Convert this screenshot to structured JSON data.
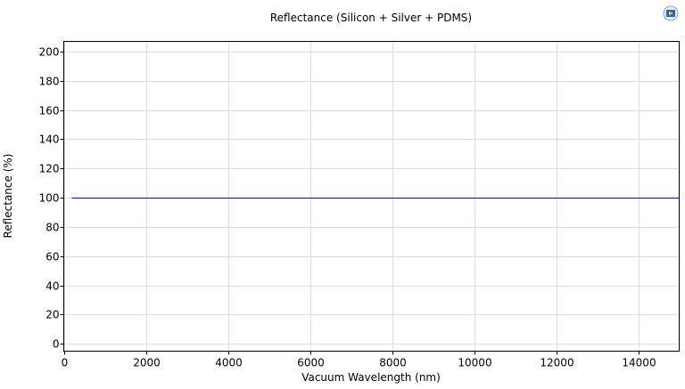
{
  "chart_data": {
    "type": "line",
    "title": "Reflectance (Silicon + Silver + PDMS)",
    "xlabel": "Vacuum Wavelength (nm)",
    "ylabel": "Reflectance (%)",
    "xlim": [
      0,
      15000
    ],
    "ylim": [
      -5,
      207
    ],
    "xticks": [
      0,
      2000,
      4000,
      6000,
      8000,
      10000,
      12000,
      14000
    ],
    "yticks": [
      0,
      20,
      40,
      60,
      80,
      100,
      120,
      140,
      160,
      180,
      200
    ],
    "grid": true,
    "series": [
      {
        "color": "#0000cc",
        "x": [
          200,
          15000
        ],
        "y": [
          100,
          100
        ]
      }
    ]
  },
  "toolbar": {
    "icon": "plot-settings-icon"
  }
}
